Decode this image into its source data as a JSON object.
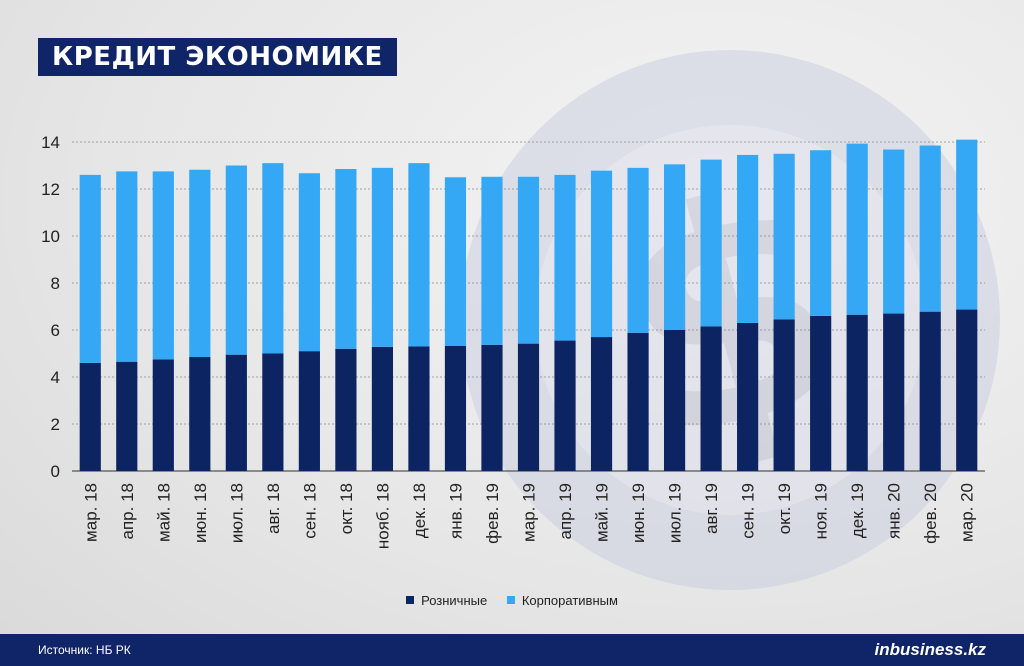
{
  "header": {
    "title": "КРЕДИТ ЭКОНОМИКЕ"
  },
  "footer": {
    "source": "Источник: НБ РК",
    "brand": "inbusiness.kz"
  },
  "colors": {
    "retail": "#0d2463",
    "corporate": "#34a8f4",
    "header_bg": "#0f2568"
  },
  "chart_data": {
    "type": "bar",
    "stacked": true,
    "categories": [
      "мар. 18",
      "апр. 18",
      "май. 18",
      "июн. 18",
      "июл. 18",
      "авг. 18",
      "сен. 18",
      "окт. 18",
      "нояб. 18",
      "дек. 18",
      "янв. 19",
      "фев. 19",
      "мар. 19",
      "апр. 19",
      "май. 19",
      "июн. 19",
      "июл. 19",
      "авг. 19",
      "сен. 19",
      "окт. 19",
      "ноя. 19",
      "дек. 19",
      "янв. 20",
      "фев. 20",
      "мар. 20"
    ],
    "series": [
      {
        "name": "Розничные",
        "color": "#0d2463",
        "values": [
          4.6,
          4.65,
          4.75,
          4.85,
          4.95,
          5.0,
          5.1,
          5.2,
          5.28,
          5.3,
          5.32,
          5.37,
          5.42,
          5.55,
          5.7,
          5.88,
          6.0,
          6.15,
          6.3,
          6.45,
          6.6,
          6.65,
          6.7,
          6.78,
          6.87
        ]
      },
      {
        "name": "Корпоративным",
        "color": "#34a8f4",
        "values": [
          8.0,
          8.1,
          8.0,
          7.97,
          8.05,
          8.1,
          7.57,
          7.65,
          7.62,
          7.8,
          7.18,
          7.15,
          7.1,
          7.05,
          7.08,
          7.02,
          7.05,
          7.1,
          7.15,
          7.05,
          7.05,
          7.28,
          6.98,
          7.07,
          7.23
        ]
      }
    ],
    "yticks": [
      "0",
      "2",
      "4",
      "6",
      "8",
      "10",
      "12",
      "14"
    ],
    "ylim": [
      0,
      14
    ],
    "grid": true,
    "legend_position": "bottom-center"
  }
}
